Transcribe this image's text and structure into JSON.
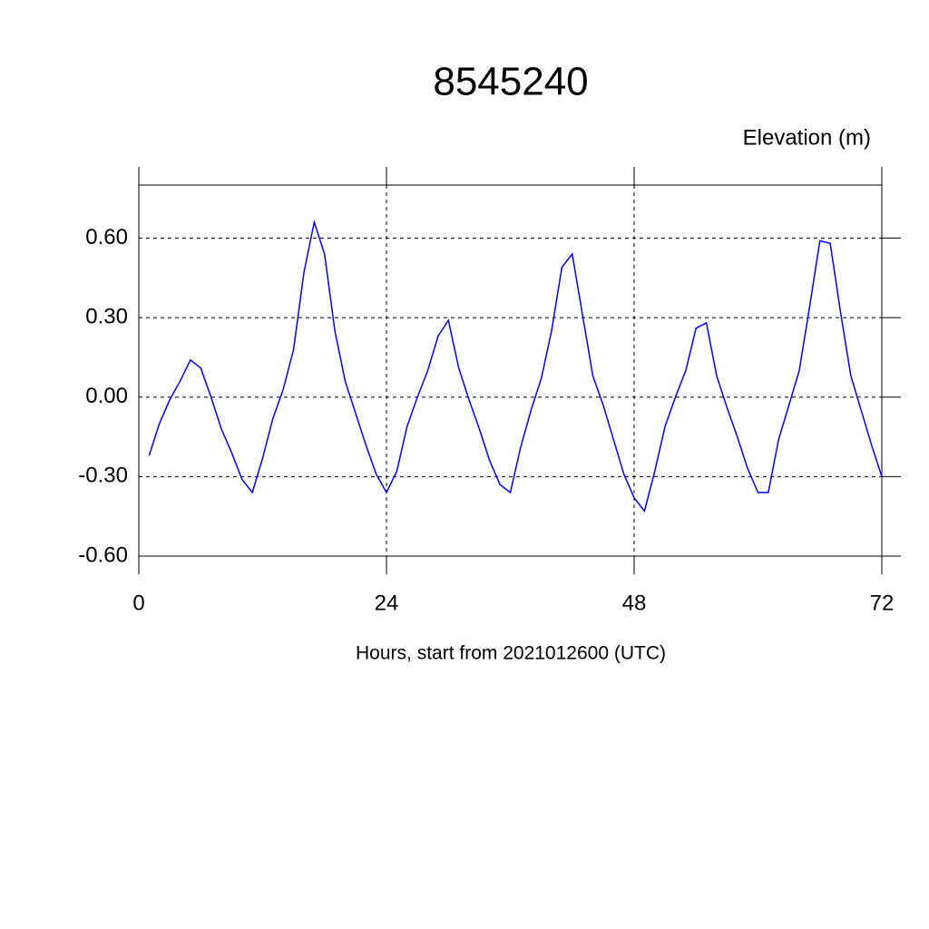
{
  "chart_data": {
    "type": "line",
    "title": "8545240",
    "subtitle": "Elevation (m)",
    "x_label": "Hours, start from 2021012600 (UTC)",
    "x": [
      1,
      2,
      3,
      4,
      5,
      6,
      7,
      8,
      9,
      10,
      11,
      12,
      13,
      14,
      15,
      16,
      17,
      18,
      19,
      20,
      21,
      22,
      23,
      24,
      25,
      26,
      27,
      28,
      29,
      30,
      31,
      32,
      33,
      34,
      35,
      36,
      37,
      38,
      39,
      40,
      41,
      42,
      43,
      44,
      45,
      46,
      47,
      48,
      49,
      50,
      51,
      52,
      53,
      54,
      55,
      56,
      57,
      58,
      59,
      60,
      61,
      62,
      63,
      64,
      65,
      66,
      67,
      68,
      69,
      70,
      71,
      72
    ],
    "series": [
      {
        "color": "#0000ff",
        "values": [
          -0.22,
          -0.1,
          -0.01,
          0.06,
          0.14,
          0.11,
          0.0,
          -0.12,
          -0.21,
          -0.31,
          -0.36,
          -0.23,
          -0.08,
          0.03,
          0.18,
          0.47,
          0.66,
          0.54,
          0.25,
          0.06,
          -0.06,
          -0.18,
          -0.29,
          -0.36,
          -0.28,
          -0.11,
          0.0,
          0.1,
          0.23,
          0.29,
          0.11,
          -0.01,
          -0.12,
          -0.24,
          -0.33,
          -0.36,
          -0.19,
          -0.05,
          0.07,
          0.25,
          0.49,
          0.54,
          0.31,
          0.08,
          -0.03,
          -0.16,
          -0.29,
          -0.38,
          -0.43,
          -0.28,
          -0.11,
          0.0,
          0.1,
          0.26,
          0.28,
          0.08,
          -0.04,
          -0.15,
          -0.27,
          -0.36,
          -0.36,
          -0.16,
          -0.03,
          0.1,
          0.34,
          0.59,
          0.58,
          0.32,
          0.08,
          -0.05,
          -0.18,
          -0.3
        ]
      }
    ],
    "xlim": [
      0,
      72
    ],
    "xticks": [
      0,
      24,
      48,
      72
    ],
    "ylim": [
      -0.6,
      0.8
    ],
    "yticks": [
      {
        "value": -0.6,
        "label": "-0.60"
      },
      {
        "value": -0.3,
        "label": "-0.30"
      },
      {
        "value": 0,
        "label": "0.00"
      },
      {
        "value": 0.3,
        "label": "0.30"
      },
      {
        "value": 0.6,
        "label": "0.60"
      }
    ],
    "grid": true
  }
}
